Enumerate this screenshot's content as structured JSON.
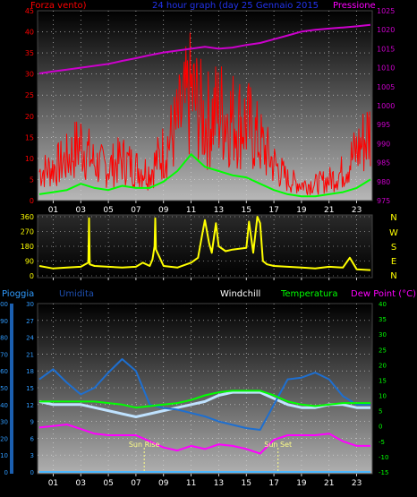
{
  "header": {
    "left_title": "Forza vento)",
    "center_title": "24 hour graph (day   25 Gennaio 2015",
    "right_title": "Pressione"
  },
  "colors": {
    "wind": "#ff0000",
    "wind_avg": "#00ff00",
    "pressure": "#cc00cc",
    "direction": "#ffff00",
    "humidity": "#1e6fd0",
    "windchill": "#bfe2ff",
    "temperature": "#00ff00",
    "dewpoint": "#ff00ff",
    "rain": "#4db8ff",
    "sun_marker": "#ffff88"
  },
  "x_ticks": [
    "01",
    "03",
    "05",
    "07",
    "09",
    "11",
    "13",
    "15",
    "17",
    "19",
    "21",
    "23"
  ],
  "chart_data": [
    {
      "type": "line",
      "panel": "wind_pressure",
      "ylabel": "Forza vento)",
      "ylim": [
        0,
        45
      ],
      "yticks": [
        0,
        5,
        10,
        15,
        20,
        25,
        30,
        35,
        40,
        45
      ],
      "y2label": "Pressione",
      "y2lim": [
        975,
        1025
      ],
      "y2ticks": [
        975,
        980,
        985,
        990,
        995,
        1000,
        1005,
        1010,
        1015,
        1020,
        1025
      ],
      "x_hours": [
        0,
        1,
        2,
        3,
        4,
        5,
        6,
        7,
        8,
        9,
        10,
        11,
        12,
        13,
        14,
        15,
        16,
        17,
        18,
        19,
        20,
        21,
        22,
        23,
        24
      ],
      "series": [
        {
          "values": [
            7,
            8,
            10,
            14,
            9,
            8,
            10,
            8,
            7,
            12,
            18,
            26,
            19,
            22,
            20,
            19,
            14,
            9,
            5,
            4,
            4,
            5,
            7,
            12,
            17
          ]
        },
        {
          "values": [
            1.5,
            2,
            2.5,
            4,
            3,
            2.5,
            3.5,
            3,
            3,
            4.5,
            7,
            11,
            8,
            7,
            6,
            5.5,
            4,
            2.5,
            1.5,
            1,
            1,
            1.5,
            2,
            3,
            5
          ]
        },
        {
          "values": [
            1008.5,
            1009,
            1009.5,
            1010,
            1010.5,
            1011,
            1011.8,
            1012.5,
            1013.3,
            1014,
            1014.5,
            1015,
            1015.5,
            1015,
            1015.3,
            1016,
            1016.5,
            1017.5,
            1018.5,
            1019.5,
            1020,
            1020.3,
            1020.6,
            1020.9,
            1021.3
          ]
        }
      ]
    },
    {
      "type": "line",
      "panel": "direction",
      "ylim": [
        0,
        360
      ],
      "yticks": [
        0,
        90,
        180,
        270,
        360
      ],
      "compass_labels": [
        "N",
        "W",
        "S",
        "E",
        "N"
      ],
      "x_hours": [
        0,
        1,
        2,
        3,
        3.55,
        3.6,
        3.65,
        4,
        5,
        6,
        7,
        7.5,
        8,
        8.2,
        8.35,
        8.4,
        8.45,
        9,
        10,
        11,
        11.5,
        11.8,
        12,
        12.3,
        12.5,
        12.8,
        13,
        13.5,
        14,
        15,
        15.2,
        15.5,
        15.8,
        16,
        16.2,
        16.5,
        17,
        18,
        19,
        20,
        21,
        22,
        22.5,
        23,
        24
      ],
      "series": [
        {
          "values": [
            60,
            45,
            50,
            55,
            80,
            350,
            70,
            60,
            55,
            50,
            55,
            80,
            60,
            100,
            180,
            350,
            160,
            60,
            50,
            80,
            110,
            250,
            340,
            200,
            140,
            320,
            180,
            150,
            160,
            170,
            330,
            140,
            360,
            320,
            90,
            70,
            60,
            55,
            50,
            45,
            55,
            50,
            110,
            40,
            35
          ]
        }
      ]
    },
    {
      "type": "line",
      "panel": "temperature",
      "legend": [
        "Pioggia",
        "Umidita",
        "Windchill",
        "Temperatura",
        "Dew Point (°C)"
      ],
      "ylim": [
        0,
        100
      ],
      "yticks": [
        0,
        10,
        20,
        30,
        40,
        50,
        60,
        70,
        80,
        90,
        100
      ],
      "ylim_mm": [
        0,
        30
      ],
      "yticks_mm": [
        0,
        3,
        6,
        9,
        12,
        15,
        18,
        21,
        24,
        27,
        30
      ],
      "y2lim": [
        -15,
        40
      ],
      "y2ticks": [
        -15,
        -10,
        -5,
        0,
        5,
        10,
        15,
        20,
        25,
        30,
        35,
        40
      ],
      "x_hours": [
        0,
        1,
        2,
        3,
        4,
        5,
        6,
        7,
        8,
        9,
        10,
        11,
        12,
        13,
        14,
        15,
        16,
        17,
        18,
        19,
        20,
        21,
        22,
        23,
        24
      ],
      "series": [
        {
          "name": "Umidita",
          "values": [
            55,
            61,
            53,
            46,
            50,
            59,
            67,
            60,
            40,
            38,
            37,
            35,
            33,
            30,
            28,
            26,
            25,
            40,
            55,
            56,
            59,
            55,
            45,
            40,
            40
          ]
        },
        {
          "name": "Windchill",
          "values": [
            8,
            7,
            7,
            7,
            6,
            5,
            4,
            3,
            4,
            5,
            6,
            7,
            8,
            10,
            11,
            11,
            11,
            9,
            7,
            6,
            6,
            7,
            7,
            6,
            6
          ]
        },
        {
          "name": "Temperatura",
          "values": [
            8,
            8,
            8,
            8,
            8,
            7.5,
            7,
            6,
            6.5,
            7,
            7.5,
            8.5,
            10,
            11,
            11.5,
            11.5,
            11.5,
            10,
            8,
            7,
            6.5,
            7,
            7.5,
            7.5,
            7.5
          ]
        },
        {
          "name": "Dew Point (°C)",
          "values": [
            -0.5,
            0,
            0.5,
            -1,
            -2.5,
            -3,
            -3,
            -3,
            -5,
            -7,
            -8,
            -6.5,
            -7.5,
            -6,
            -6.5,
            -7.5,
            -9,
            -4.5,
            -3,
            -3,
            -3,
            -2.5,
            -5,
            -6.5,
            -6.5
          ]
        },
        {
          "name": "Pioggia",
          "values": [
            0,
            0,
            0,
            0,
            0,
            0,
            0,
            0,
            0,
            0,
            0,
            0,
            0,
            0,
            0,
            0,
            0,
            0,
            0,
            0,
            0,
            0,
            0,
            0,
            0
          ]
        }
      ],
      "annotations": [
        {
          "text": "Sun Rise",
          "x_hour": 7.6
        },
        {
          "text": "Sun Set",
          "x_hour": 17.3
        }
      ]
    }
  ]
}
